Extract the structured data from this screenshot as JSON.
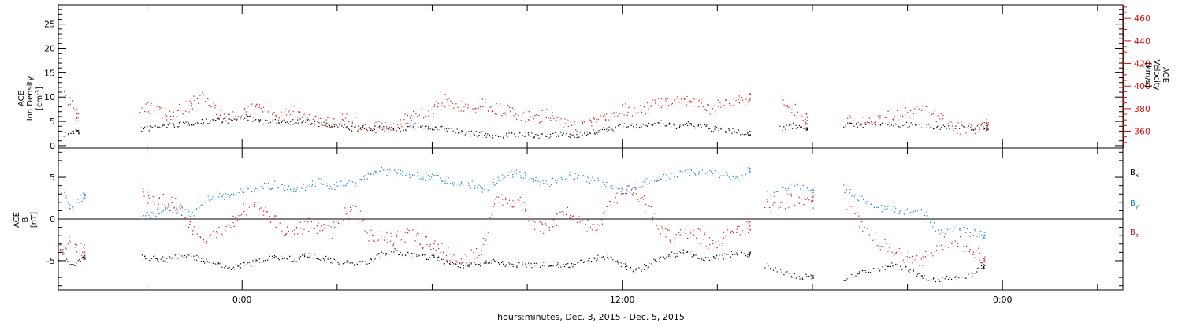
{
  "colors": {
    "black": "#000000",
    "red": "#dd1111",
    "blue": "#1a7fd6"
  },
  "x_axis_title": "hours:minutes, Dec.  3, 2015 - Dec.  5, 2015",
  "x_ticks": [
    "0:00",
    "12:00",
    "0:00"
  ],
  "chart_data": [
    {
      "type": "scatter",
      "panel": "top",
      "x_unit": "hours since 2015-12-03 0:00",
      "xlim": [
        -5.8,
        27.8
      ],
      "left_axis": {
        "label_lines": [
          "ACE",
          "Ion Density"
        ],
        "unit": "[cm",
        "unit_sup": "-3",
        "unit_end": "]",
        "ylim": [
          -0.5,
          29
        ],
        "ticks": [
          0,
          5,
          10,
          15,
          20,
          25
        ]
      },
      "right_axis": {
        "label_lines": [
          "ACE",
          "Velocity"
        ],
        "unit": "[km/s]",
        "ylim": [
          345,
          472
        ],
        "ticks": [
          360,
          380,
          400,
          420,
          440,
          460
        ],
        "color": "#dd1111"
      },
      "series": [
        {
          "color": "#000000",
          "axis": "left",
          "segments": [
            {
              "x": [
                -5.6,
                -5.2,
                -4.8,
                -4.4,
                -4.0,
                -3.6,
                -3.2,
                -2.8,
                -2.4,
                -2.0,
                -1.6,
                -1.2,
                -0.8,
                -0.4,
                0.0,
                0.4,
                0.8,
                1.2,
                1.6,
                2.0,
                2.4,
                2.8,
                3.2,
                3.6,
                4.0,
                4.4,
                4.8,
                5.2,
                5.6,
                6.0,
                6.4,
                6.8,
                7.2,
                7.6,
                8.0,
                8.4,
                8.8,
                9.2,
                9.6,
                10.0,
                10.4,
                10.8,
                11.2,
                11.6,
                12.0,
                12.4,
                12.8,
                13.2,
                13.6,
                14.0,
                14.4,
                14.8,
                15.2,
                15.6,
                16.0
              ],
              "y": [
                2.5,
                3.0,
                null,
                null,
                null,
                null,
                3.5,
                3.8,
                4.2,
                4.5,
                4.8,
                5.0,
                5.5,
                5.2,
                6.0,
                5.5,
                4.8,
                5.2,
                5.0,
                5.3,
                4.5,
                4.2,
                4.0,
                3.5,
                3.8,
                3.6,
                3.2,
                3.8,
                4.2,
                3.5,
                3.6,
                3.0,
                2.6,
                2.4,
                2.0,
                2.4,
                2.2,
                2.3,
                2.0,
                2.4,
                2.2,
                2.5,
                3.0,
                3.5,
                4.2,
                4.0,
                4.5,
                4.8,
                4.0,
                4.5,
                4.0,
                3.6,
                3.2,
                3.0,
                2.6
              ]
            },
            {
              "x": [
                17.0,
                17.4,
                17.8
              ],
              "y": [
                3.8,
                4.2,
                3.8
              ]
            },
            {
              "x": [
                19.0,
                19.5,
                20.0,
                20.5,
                21.0,
                21.5,
                22.0,
                22.5,
                23.0,
                23.5
              ],
              "y": [
                4.2,
                4.4,
                4.5,
                4.4,
                4.3,
                4.2,
                4.0,
                3.7,
                3.8,
                3.9
              ]
            }
          ]
        },
        {
          "color": "#dd1111",
          "axis": "right",
          "segments": [
            {
              "x": [
                -5.6,
                -5.2
              ],
              "y": [
                392,
                375
              ]
            },
            {
              "x": [
                -3.2,
                -2.8,
                -2.4,
                -2.0,
                -1.6,
                -1.2,
                -0.8,
                -0.4,
                0.0,
                0.4,
                0.8,
                1.2,
                1.6,
                2.0,
                2.4,
                2.8,
                3.2,
                3.6,
                4.0,
                4.4,
                4.8,
                5.2,
                5.6,
                6.0,
                6.4,
                6.8,
                7.2,
                7.6,
                8.0,
                8.4,
                8.8,
                9.2,
                9.6,
                10.0,
                10.4,
                10.8,
                11.2,
                11.6,
                12.0,
                12.4,
                12.8,
                13.2,
                13.6,
                14.0,
                14.4,
                14.8,
                15.2,
                15.6,
                16.0
              ],
              "y": [
                378,
                382,
                375,
                378,
                385,
                390,
                378,
                372,
                376,
                382,
                380,
                375,
                378,
                372,
                370,
                368,
                374,
                368,
                362,
                364,
                366,
                372,
                376,
                378,
                388,
                382,
                380,
                384,
                380,
                378,
                374,
                372,
                375,
                368,
                365,
                364,
                368,
                375,
                380,
                378,
                382,
                386,
                384,
                388,
                385,
                380,
                384,
                388,
                390
              ]
            },
            {
              "x": [
                17.0,
                17.4,
                17.8
              ],
              "y": [
                388,
                380,
                372
              ]
            },
            {
              "x": [
                19.0,
                19.5,
                20.0,
                20.5,
                21.0,
                21.5,
                22.0,
                22.5,
                23.0,
                23.5
              ],
              "y": [
                370,
                368,
                372,
                374,
                376,
                380,
                372,
                364,
                362,
                366
              ]
            }
          ]
        }
      ]
    },
    {
      "type": "scatter",
      "panel": "bottom",
      "x_unit": "hours since 2015-12-03 0:00",
      "xlim": [
        -5.8,
        27.8
      ],
      "left_axis": {
        "label_lines": [
          "ACE",
          "B"
        ],
        "unit": "[nT]",
        "ylim": [
          -8.5,
          8.5
        ],
        "ticks": [
          -5,
          0,
          5
        ],
        "zero_line": true
      },
      "legend": [
        {
          "base": "B",
          "sub": "x",
          "color": "#000000"
        },
        {
          "base": "B",
          "sub": "y",
          "color": "#1a7fd6"
        },
        {
          "base": "B",
          "sub": "z",
          "color": "#dd1111"
        }
      ],
      "series": [
        {
          "name": "Bx",
          "color": "#000000",
          "segments": [
            {
              "x": [
                -5.8,
                -5.4,
                -5.0
              ],
              "y": [
                -3.0,
                -5.8,
                -4.5
              ]
            },
            {
              "x": [
                -3.2,
                -2.8,
                -2.4,
                -2.0,
                -1.6,
                -1.2,
                -0.8,
                -0.4,
                0.0,
                0.4,
                0.8,
                1.2,
                1.6,
                2.0,
                2.4,
                2.8,
                3.2,
                3.6,
                4.0,
                4.4,
                4.8,
                5.2,
                5.6,
                6.0,
                6.4,
                6.8,
                7.2,
                7.6,
                8.0,
                8.4,
                8.8,
                9.2,
                9.6,
                10.0,
                10.4,
                10.8,
                11.2,
                11.6,
                12.0,
                12.4,
                12.8,
                13.2,
                13.6,
                14.0,
                14.4,
                14.8,
                15.2,
                15.6,
                16.0
              ],
              "y": [
                -4.6,
                -4.7,
                -4.8,
                -4.5,
                -4.4,
                -5.0,
                -5.5,
                -5.8,
                -5.5,
                -5.2,
                -4.6,
                -4.5,
                -4.8,
                -4.4,
                -4.5,
                -4.9,
                -5.2,
                -5.4,
                -5.0,
                -4.2,
                -3.8,
                -4.2,
                -4.5,
                -4.6,
                -5.0,
                -5.5,
                -5.6,
                -5.2,
                -5.0,
                -5.4,
                -5.5,
                -5.6,
                -5.3,
                -5.5,
                -5.4,
                -5.0,
                -4.6,
                -4.5,
                -5.5,
                -6.2,
                -5.4,
                -4.6,
                -4.2,
                -3.8,
                -4.5,
                -4.8,
                -4.4,
                -4.0,
                -4.2
              ]
            },
            {
              "x": [
                16.5,
                17.0,
                17.5,
                18.0
              ],
              "y": [
                -5.5,
                -6.2,
                -6.8,
                -7.0
              ]
            },
            {
              "x": [
                19.0,
                19.5,
                20.0,
                20.5,
                21.0,
                21.5,
                22.0,
                22.5,
                23.0,
                23.4
              ],
              "y": [
                -7.2,
                -6.4,
                -6.0,
                -5.5,
                -6.0,
                -7.0,
                -7.2,
                -7.0,
                -6.6,
                -5.8
              ]
            }
          ]
        },
        {
          "name": "By",
          "color": "#1a7fd6",
          "segments": [
            {
              "x": [
                -5.8,
                -5.4,
                -5.0
              ],
              "y": [
                4.0,
                1.5,
                2.8
              ]
            },
            {
              "x": [
                -3.2,
                -2.8,
                -2.4,
                -2.0,
                -1.6,
                -1.2,
                -0.8,
                -0.4,
                0.0,
                0.4,
                0.8,
                1.2,
                1.6,
                2.0,
                2.4,
                2.8,
                3.2,
                3.6,
                4.0,
                4.4,
                4.8,
                5.2,
                5.6,
                6.0,
                6.4,
                6.8,
                7.2,
                7.6,
                8.0,
                8.4,
                8.8,
                9.2,
                9.6,
                10.0,
                10.4,
                10.8,
                11.2,
                11.6,
                12.0,
                12.4,
                12.8,
                13.2,
                13.6,
                14.0,
                14.4,
                14.8,
                15.2,
                15.6,
                16.0
              ],
              "y": [
                0.5,
                0.8,
                1.5,
                1.0,
                0.5,
                2.2,
                3.0,
                2.5,
                3.5,
                3.8,
                4.0,
                4.2,
                3.5,
                4.0,
                4.5,
                4.0,
                4.2,
                4.5,
                5.5,
                5.8,
                5.6,
                5.5,
                5.2,
                5.0,
                4.8,
                4.5,
                4.2,
                3.5,
                4.5,
                5.5,
                5.4,
                4.8,
                4.2,
                5.0,
                5.2,
                4.8,
                4.5,
                4.0,
                3.2,
                4.0,
                4.6,
                5.0,
                5.2,
                5.5,
                5.8,
                5.6,
                5.2,
                5.0,
                5.8
              ]
            },
            {
              "x": [
                16.5,
                17.0,
                17.5,
                18.0
              ],
              "y": [
                2.8,
                3.5,
                4.0,
                3.2
              ]
            },
            {
              "x": [
                19.0,
                19.5,
                20.0,
                20.5,
                21.0,
                21.5,
                22.0,
                22.5,
                23.0,
                23.4
              ],
              "y": [
                3.8,
                2.5,
                1.5,
                1.2,
                0.8,
                1.0,
                -1.5,
                -1.0,
                -1.6,
                -1.8
              ]
            }
          ]
        },
        {
          "name": "Bz",
          "color": "#dd1111",
          "segments": [
            {
              "x": [
                -5.8,
                -5.4,
                -5.0
              ],
              "y": [
                -4.5,
                -2.5,
                -3.8
              ]
            },
            {
              "x": [
                -3.2,
                -2.8,
                -2.4,
                -2.0,
                -1.6,
                -1.2,
                -0.8,
                -0.4,
                0.0,
                0.4,
                0.8,
                1.2,
                1.6,
                2.0,
                2.4,
                2.8,
                3.2,
                3.6,
                4.0,
                4.4,
                4.8,
                5.2,
                5.6,
                6.0,
                6.4,
                6.8,
                7.2,
                7.6,
                8.0,
                8.4,
                8.8,
                9.2,
                9.6,
                10.0,
                10.4,
                10.8,
                11.2,
                11.6,
                12.0,
                12.4,
                12.8,
                13.2,
                13.6,
                14.0,
                14.4,
                14.8,
                15.2,
                15.6,
                16.0
              ],
              "y": [
                3.0,
                2.5,
                2.2,
                1.8,
                -1.0,
                -2.5,
                -1.5,
                -0.8,
                1.2,
                1.5,
                0.5,
                -1.0,
                -2.0,
                -0.5,
                -1.2,
                -1.5,
                0.5,
                1.0,
                -1.8,
                -2.2,
                -2.4,
                -1.8,
                -2.5,
                -3.0,
                -4.0,
                -5.0,
                -4.5,
                -3.5,
                2.5,
                2.0,
                1.8,
                -0.8,
                -1.0,
                0.5,
                1.0,
                -0.5,
                -1.0,
                2.0,
                3.5,
                3.0,
                1.5,
                -1.2,
                -2.5,
                -1.5,
                -2.0,
                -3.0,
                -2.2,
                -1.5,
                -1.0
              ]
            },
            {
              "x": [
                16.5,
                17.0,
                17.5,
                18.0
              ],
              "y": [
                1.5,
                1.8,
                2.5,
                2.2
              ]
            },
            {
              "x": [
                19.0,
                19.5,
                20.0,
                20.5,
                21.0,
                21.5,
                22.0,
                22.5,
                23.0,
                23.4
              ],
              "y": [
                2.5,
                -0.5,
                -2.5,
                -3.8,
                -4.5,
                -5.0,
                -3.0,
                -2.5,
                -3.5,
                -5.0
              ]
            }
          ]
        }
      ]
    }
  ]
}
